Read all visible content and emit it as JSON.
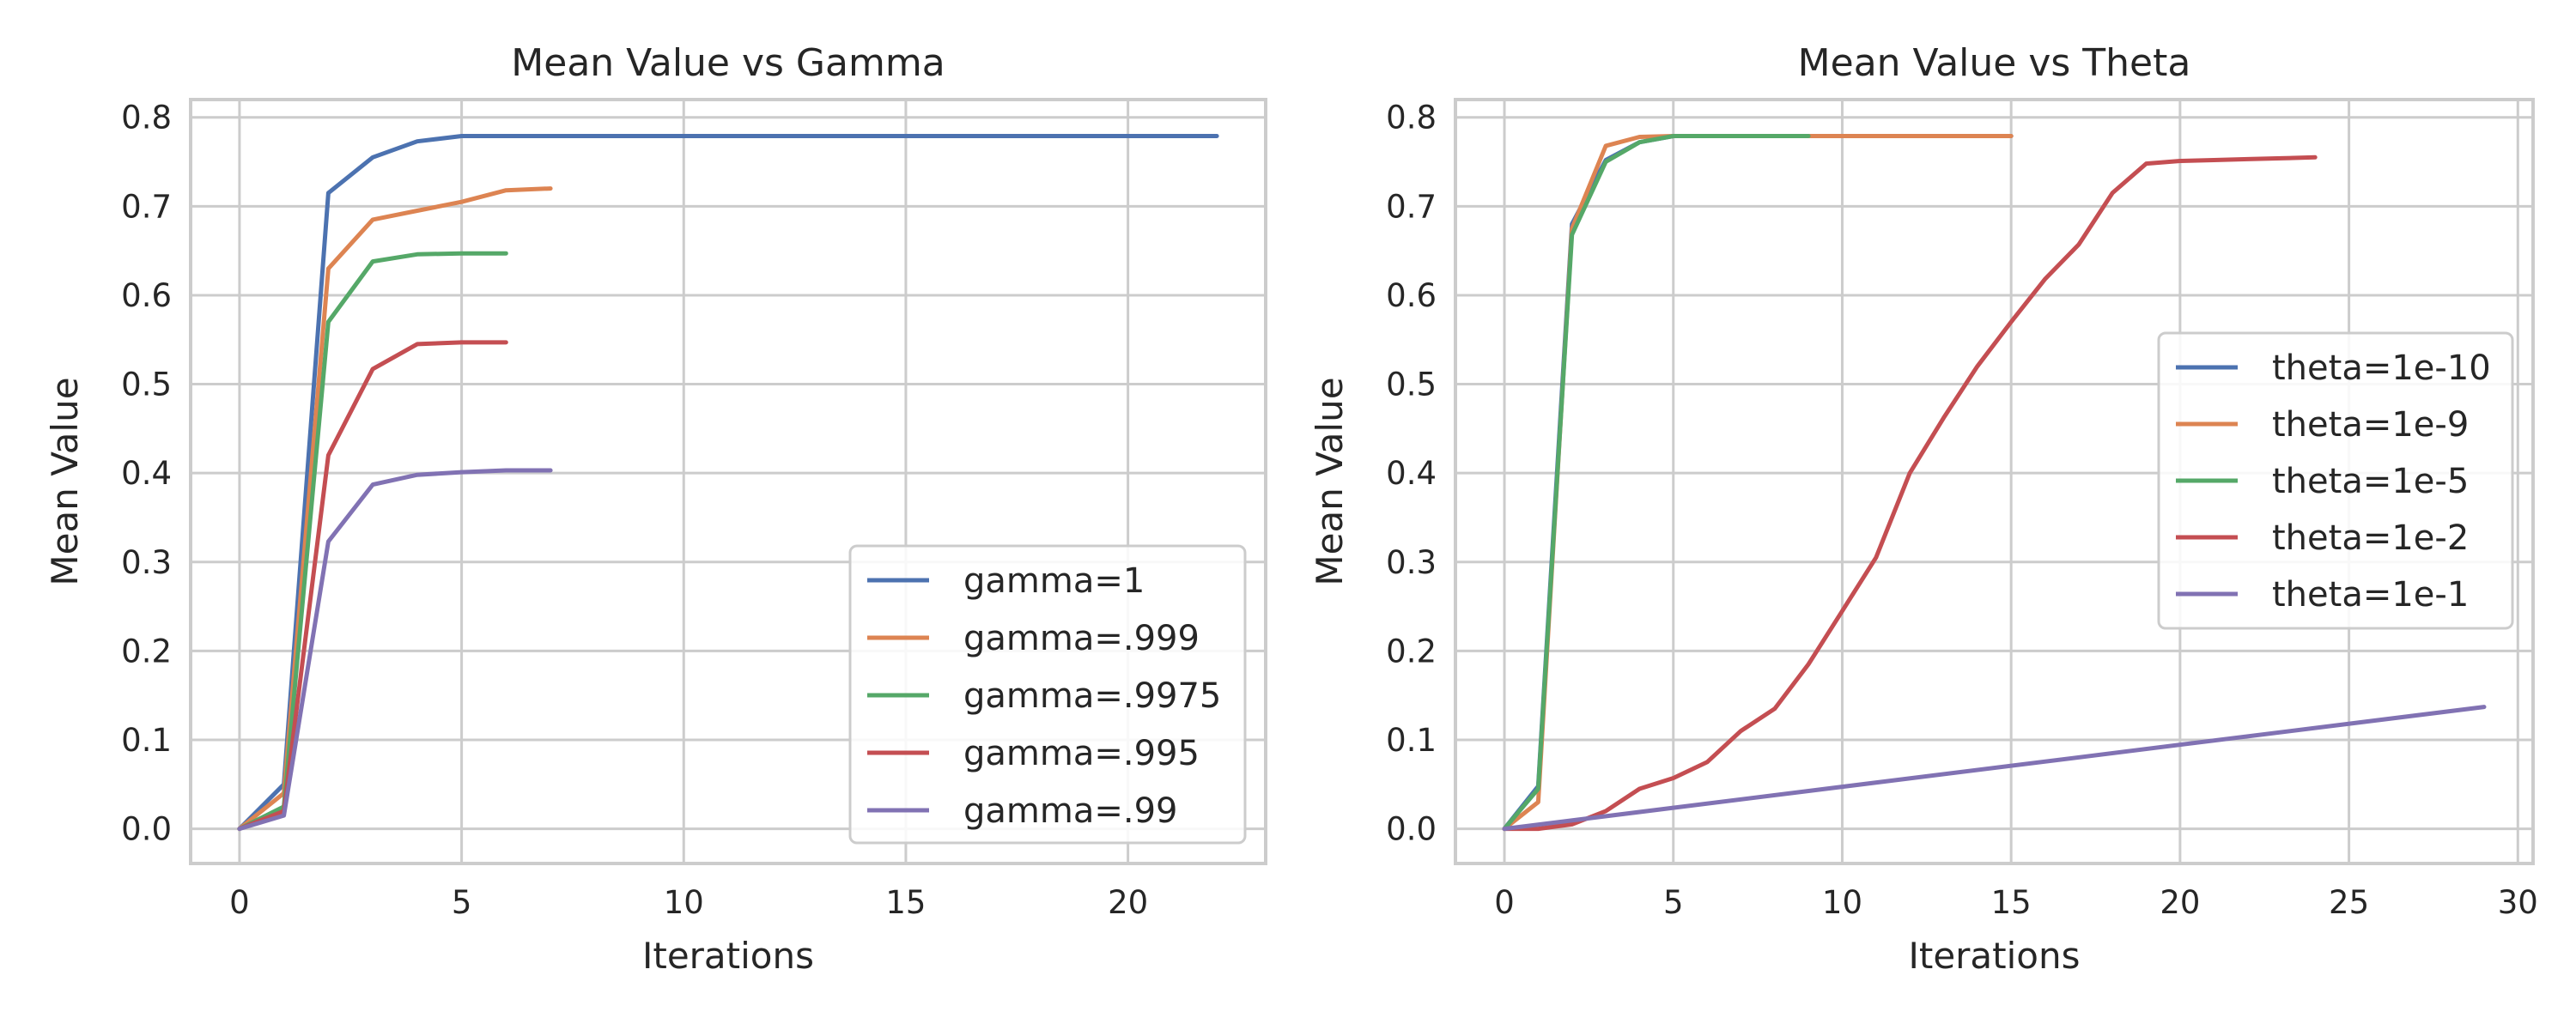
{
  "chart_data": [
    {
      "type": "line",
      "title": "Mean Value vs Gamma",
      "xlabel": "Iterations",
      "ylabel": "Mean Value",
      "xlim": [
        -1.1,
        23.1
      ],
      "ylim": [
        -0.039,
        0.82
      ],
      "xticks": [
        0,
        5,
        10,
        15,
        20
      ],
      "yticks": [
        0.0,
        0.1,
        0.2,
        0.3,
        0.4,
        0.5,
        0.6,
        0.7,
        0.8
      ],
      "grid": true,
      "legend_position": "lower-right",
      "series": [
        {
          "name": "gamma=1",
          "color": "#4c72b0",
          "x": [
            0,
            1,
            2,
            3,
            4,
            5,
            6,
            7,
            8,
            9,
            10,
            11,
            12,
            13,
            14,
            15,
            16,
            17,
            18,
            19,
            20,
            21,
            22
          ],
          "y": [
            0,
            0.05,
            0.715,
            0.755,
            0.773,
            0.779,
            0.779,
            0.779,
            0.779,
            0.779,
            0.779,
            0.779,
            0.779,
            0.779,
            0.779,
            0.779,
            0.779,
            0.779,
            0.779,
            0.779,
            0.779,
            0.779,
            0.779
          ]
        },
        {
          "name": "gamma=.999",
          "color": "#dd8452",
          "x": [
            0,
            1,
            2,
            3,
            4,
            5,
            6,
            7
          ],
          "y": [
            0,
            0.04,
            0.63,
            0.685,
            0.695,
            0.705,
            0.718,
            0.72
          ]
        },
        {
          "name": "gamma=.9975",
          "color": "#55a868",
          "x": [
            0,
            1,
            2,
            3,
            4,
            5,
            6
          ],
          "y": [
            0,
            0.025,
            0.57,
            0.638,
            0.646,
            0.647,
            0.647
          ]
        },
        {
          "name": "gamma=.995",
          "color": "#c44e52",
          "x": [
            0,
            1,
            2,
            3,
            4,
            5,
            6
          ],
          "y": [
            0,
            0.02,
            0.42,
            0.517,
            0.545,
            0.547,
            0.547
          ]
        },
        {
          "name": "gamma=.99",
          "color": "#8172b3",
          "x": [
            0,
            1,
            2,
            3,
            4,
            5,
            6,
            7
          ],
          "y": [
            0,
            0.015,
            0.323,
            0.387,
            0.398,
            0.401,
            0.403,
            0.403
          ]
        }
      ]
    },
    {
      "type": "line",
      "title": "Mean Value vs Theta",
      "xlabel": "Iterations",
      "ylabel": "Mean Value",
      "xlim": [
        -1.45,
        30.45
      ],
      "ylim": [
        -0.039,
        0.82
      ],
      "xticks": [
        0,
        5,
        10,
        15,
        20,
        25,
        30
      ],
      "yticks": [
        0.0,
        0.1,
        0.2,
        0.3,
        0.4,
        0.5,
        0.6,
        0.7,
        0.8
      ],
      "grid": true,
      "legend_position": "center-right",
      "series": [
        {
          "name": "theta=1e-10",
          "color": "#4c72b0",
          "x": [
            0,
            1,
            2,
            3,
            4,
            5,
            6,
            7,
            8,
            9,
            10,
            11,
            12,
            13,
            14,
            15
          ],
          "y": [
            0,
            0.048,
            0.68,
            0.752,
            0.772,
            0.779,
            0.779,
            0.779,
            0.779,
            0.779,
            0.779,
            0.779,
            0.779,
            0.779,
            0.779,
            0.779
          ]
        },
        {
          "name": "theta=1e-9",
          "color": "#dd8452",
          "x": [
            0,
            1,
            2,
            3,
            4,
            5,
            6,
            7,
            8,
            9,
            10,
            11,
            12,
            13,
            14,
            15
          ],
          "y": [
            0,
            0.03,
            0.675,
            0.768,
            0.778,
            0.779,
            0.779,
            0.779,
            0.779,
            0.779,
            0.779,
            0.779,
            0.779,
            0.779,
            0.779,
            0.779
          ]
        },
        {
          "name": "theta=1e-5",
          "color": "#55a868",
          "x": [
            0,
            1,
            2,
            3,
            4,
            5,
            6,
            7,
            8,
            9
          ],
          "y": [
            0,
            0.045,
            0.668,
            0.75,
            0.772,
            0.779,
            0.779,
            0.779,
            0.779,
            0.779
          ]
        },
        {
          "name": "theta=1e-2",
          "color": "#c44e52",
          "x": [
            0,
            1,
            2,
            3,
            4,
            5,
            6,
            7,
            8,
            9,
            10,
            11,
            12,
            13,
            14,
            15,
            16,
            17,
            18,
            19,
            20,
            21,
            22,
            23,
            24
          ],
          "y": [
            0,
            0,
            0.005,
            0.02,
            0.045,
            0.057,
            0.075,
            0.11,
            0.135,
            0.185,
            0.245,
            0.305,
            0.4,
            0.462,
            0.52,
            0.57,
            0.618,
            0.657,
            0.715,
            0.748,
            0.751,
            0.752,
            0.753,
            0.754,
            0.755
          ]
        },
        {
          "name": "theta=1e-1",
          "color": "#8172b3",
          "x": [
            0,
            29
          ],
          "y": [
            0,
            0.137
          ]
        }
      ]
    }
  ]
}
